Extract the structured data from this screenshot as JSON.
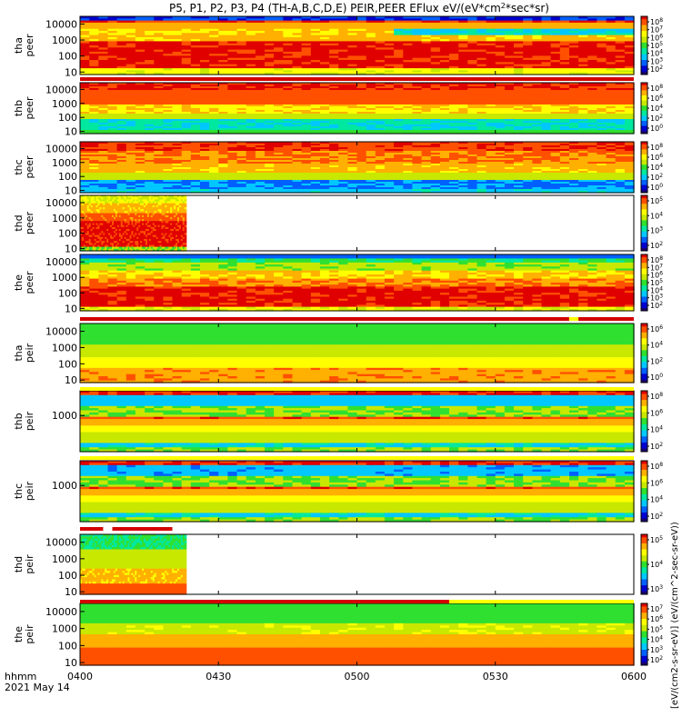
{
  "title_parts": [
    "P5, P1, P2, P3, P4 (TH-A,B,C,D,E) PEIR,PEER EFlux eV/(eV*cm",
    "2",
    "*sec*sr)"
  ],
  "colorbar_label": "[eV/(cm2-s-sr-eV)] (eV/(cm^2-sec-sr-eV))",
  "x_axis": {
    "ticks": [
      "0400",
      "0430",
      "0500",
      "0530",
      "0600"
    ],
    "corner_label": "hhmm",
    "date_label": "2021 May 14"
  },
  "chart_data": {
    "type": "heatmap",
    "x_range": [
      "04:00",
      "06:00"
    ],
    "y_scale": "log",
    "y_range": [
      7,
      30000
    ],
    "colorbar_scale": "log",
    "panels": [
      {
        "probe": "tha",
        "label_top": "tha",
        "label_bottom": "peer",
        "yticks": [
          "10000",
          "1000",
          "100",
          "10"
        ],
        "cbar_ticks": [
          "10^8",
          "10^7",
          "10^6",
          "10^5",
          "10^4",
          "10^3",
          "10^2"
        ],
        "cbar_ticks_display": [
          "10",
          "10",
          "10",
          "10",
          "10",
          "10",
          "10"
        ],
        "cbar_exps": [
          "8",
          "7",
          "6",
          "5",
          "4",
          "3",
          "2"
        ],
        "data_end": "06:00",
        "profile": "tha_peer"
      },
      {
        "probe": "thb",
        "label_top": "thb",
        "label_bottom": "peer",
        "yticks": [
          "10000",
          "1000",
          "100",
          "10"
        ],
        "cbar_ticks_display": [
          "10",
          "10",
          "10",
          "10",
          "10"
        ],
        "cbar_exps": [
          "8",
          "6",
          "4",
          "2",
          "0"
        ],
        "data_end": "06:00",
        "profile": "thb_peer"
      },
      {
        "probe": "thc",
        "label_top": "thc",
        "label_bottom": "peer",
        "yticks": [
          "10000",
          "1000",
          "100",
          "10"
        ],
        "cbar_ticks_display": [
          "10",
          "10",
          "10",
          "10",
          "10"
        ],
        "cbar_exps": [
          "8",
          "6",
          "4",
          "2",
          "0"
        ],
        "data_end": "06:00",
        "profile": "thc_peer"
      },
      {
        "probe": "thd",
        "label_top": "thd",
        "label_bottom": "peer",
        "yticks": [
          "10000",
          "1000",
          "100",
          "10"
        ],
        "cbar_ticks_display": [
          "10",
          "10",
          "10",
          "10"
        ],
        "cbar_exps": [
          "5",
          "4",
          "3",
          "2"
        ],
        "data_end": "04:23",
        "profile": "thd_peer"
      },
      {
        "probe": "the",
        "label_top": "the",
        "label_bottom": "peer",
        "yticks": [
          "10000",
          "1000",
          "100",
          "10"
        ],
        "cbar_ticks_display": [
          "10",
          "10",
          "10",
          "10",
          "10",
          "10",
          "10"
        ],
        "cbar_exps": [
          "8",
          "7",
          "6",
          "5",
          "4",
          "3",
          "2"
        ],
        "data_end": "06:00",
        "profile": "the_peer"
      },
      {
        "probe": "tha",
        "label_top": "tha",
        "label_bottom": "peir",
        "yticks": [
          "10000",
          "1000",
          "100",
          "10"
        ],
        "cbar_ticks_display": [
          "10",
          "10",
          "10",
          "10"
        ],
        "cbar_exps": [
          "6",
          "4",
          "2",
          "0"
        ],
        "data_end": "06:00",
        "profile": "tha_peir"
      },
      {
        "probe": "thb",
        "label_top": "thb",
        "label_bottom": "peir",
        "yticks": [
          "1000"
        ],
        "cbar_ticks_display": [
          "10",
          "10",
          "10",
          "10"
        ],
        "cbar_exps": [
          "8",
          "6",
          "4",
          "2"
        ],
        "data_end": "06:00",
        "profile": "thb_peir"
      },
      {
        "probe": "thc",
        "label_top": "thc",
        "label_bottom": "peir",
        "yticks": [
          "1000"
        ],
        "cbar_ticks_display": [
          "10",
          "10",
          "10",
          "10"
        ],
        "cbar_exps": [
          "8",
          "6",
          "4",
          "2"
        ],
        "data_end": "06:00",
        "profile": "thc_peir"
      },
      {
        "probe": "thd",
        "label_top": "thd",
        "label_bottom": "peir",
        "yticks": [
          "10000",
          "1000",
          "100",
          "10"
        ],
        "cbar_ticks_display": [
          "10",
          "10",
          "10"
        ],
        "cbar_exps": [
          "5",
          "4",
          "3"
        ],
        "data_end": "04:23",
        "profile": "thd_peir"
      },
      {
        "probe": "the",
        "label_top": "the",
        "label_bottom": "peir",
        "yticks": [
          "10000",
          "1000",
          "100",
          "10"
        ],
        "cbar_ticks_display": [
          "10",
          "10",
          "10",
          "10",
          "10",
          "10"
        ],
        "cbar_exps": [
          "7",
          "6",
          "5",
          "4",
          "3",
          "2"
        ],
        "data_end": "06:00",
        "profile": "the_peir"
      }
    ],
    "mode_bars": [
      {
        "after_panel": 0,
        "segments": [
          {
            "from": "04:00",
            "to": "06:00",
            "color": "#d40000"
          }
        ]
      },
      {
        "after_panel": 4,
        "segments": [
          {
            "from": "04:00",
            "to": "05:46",
            "color": "#d40000"
          },
          {
            "from": "05:46",
            "to": "05:48",
            "color": "#ffff00"
          },
          {
            "from": "05:48",
            "to": "06:00",
            "color": "#d40000"
          }
        ]
      },
      {
        "after_panel": 5,
        "segments": [
          {
            "from": "04:00",
            "to": "06:00",
            "color": "#ffff00"
          }
        ]
      },
      {
        "after_panel": 6,
        "segments": [
          {
            "from": "04:00",
            "to": "06:00",
            "color": "#ffff00"
          }
        ]
      },
      {
        "after_panel": 7,
        "segments": [
          {
            "from": "04:00",
            "to": "04:05",
            "color": "#d40000"
          },
          {
            "from": "04:07",
            "to": "04:20",
            "color": "#d40000"
          }
        ]
      },
      {
        "after_panel": 8,
        "segments": [
          {
            "from": "04:00",
            "to": "05:20",
            "color": "#d40000"
          },
          {
            "from": "05:20",
            "to": "06:00",
            "color": "#ffff00"
          }
        ]
      }
    ]
  },
  "colors": {
    "colormap": [
      "#1a0070",
      "#0000d0",
      "#0060ff",
      "#00c8ff",
      "#00e8a0",
      "#30e030",
      "#c8e800",
      "#ffff00",
      "#ffb000",
      "#ff5000",
      "#e00000"
    ]
  }
}
